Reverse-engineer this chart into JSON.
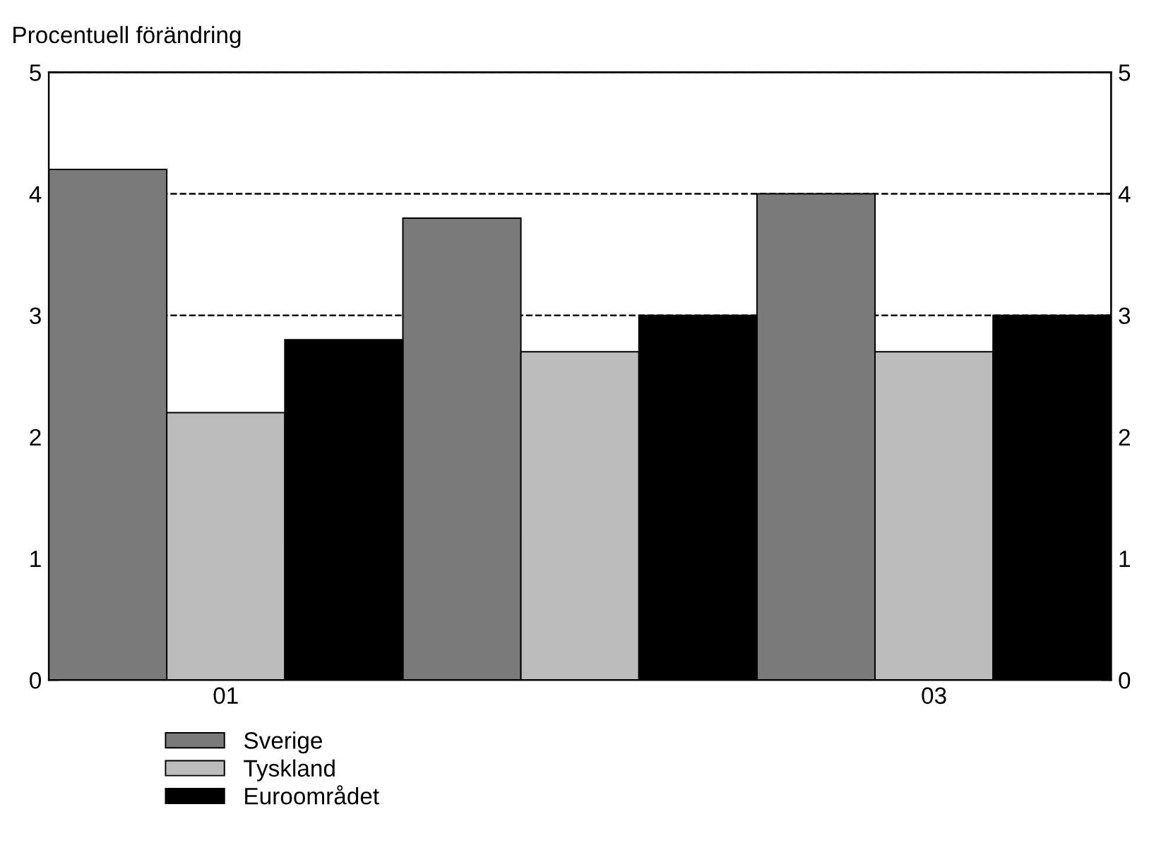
{
  "chart_data": {
    "type": "bar",
    "ylabel": "Procentuell förändring",
    "categories": [
      "01",
      null,
      "03"
    ],
    "series": [
      {
        "name": "Sverige",
        "color": "#7a7a7a",
        "values": [
          4.2,
          3.8,
          4.0
        ]
      },
      {
        "name": "Tyskland",
        "color": "#bcbcbc",
        "values": [
          2.2,
          2.7,
          2.7
        ]
      },
      {
        "name": "Euroområdet",
        "color": "#000000",
        "values": [
          2.8,
          3.0,
          3.0
        ]
      }
    ],
    "ylim": [
      0,
      5
    ],
    "yticks": [
      0,
      1,
      2,
      3,
      4,
      5
    ],
    "y2lim": [
      0,
      5
    ],
    "y2ticks": [
      0,
      1,
      2,
      3,
      4,
      5
    ],
    "grid": "y",
    "line_style": "dashed",
    "legend": "bottom left"
  }
}
